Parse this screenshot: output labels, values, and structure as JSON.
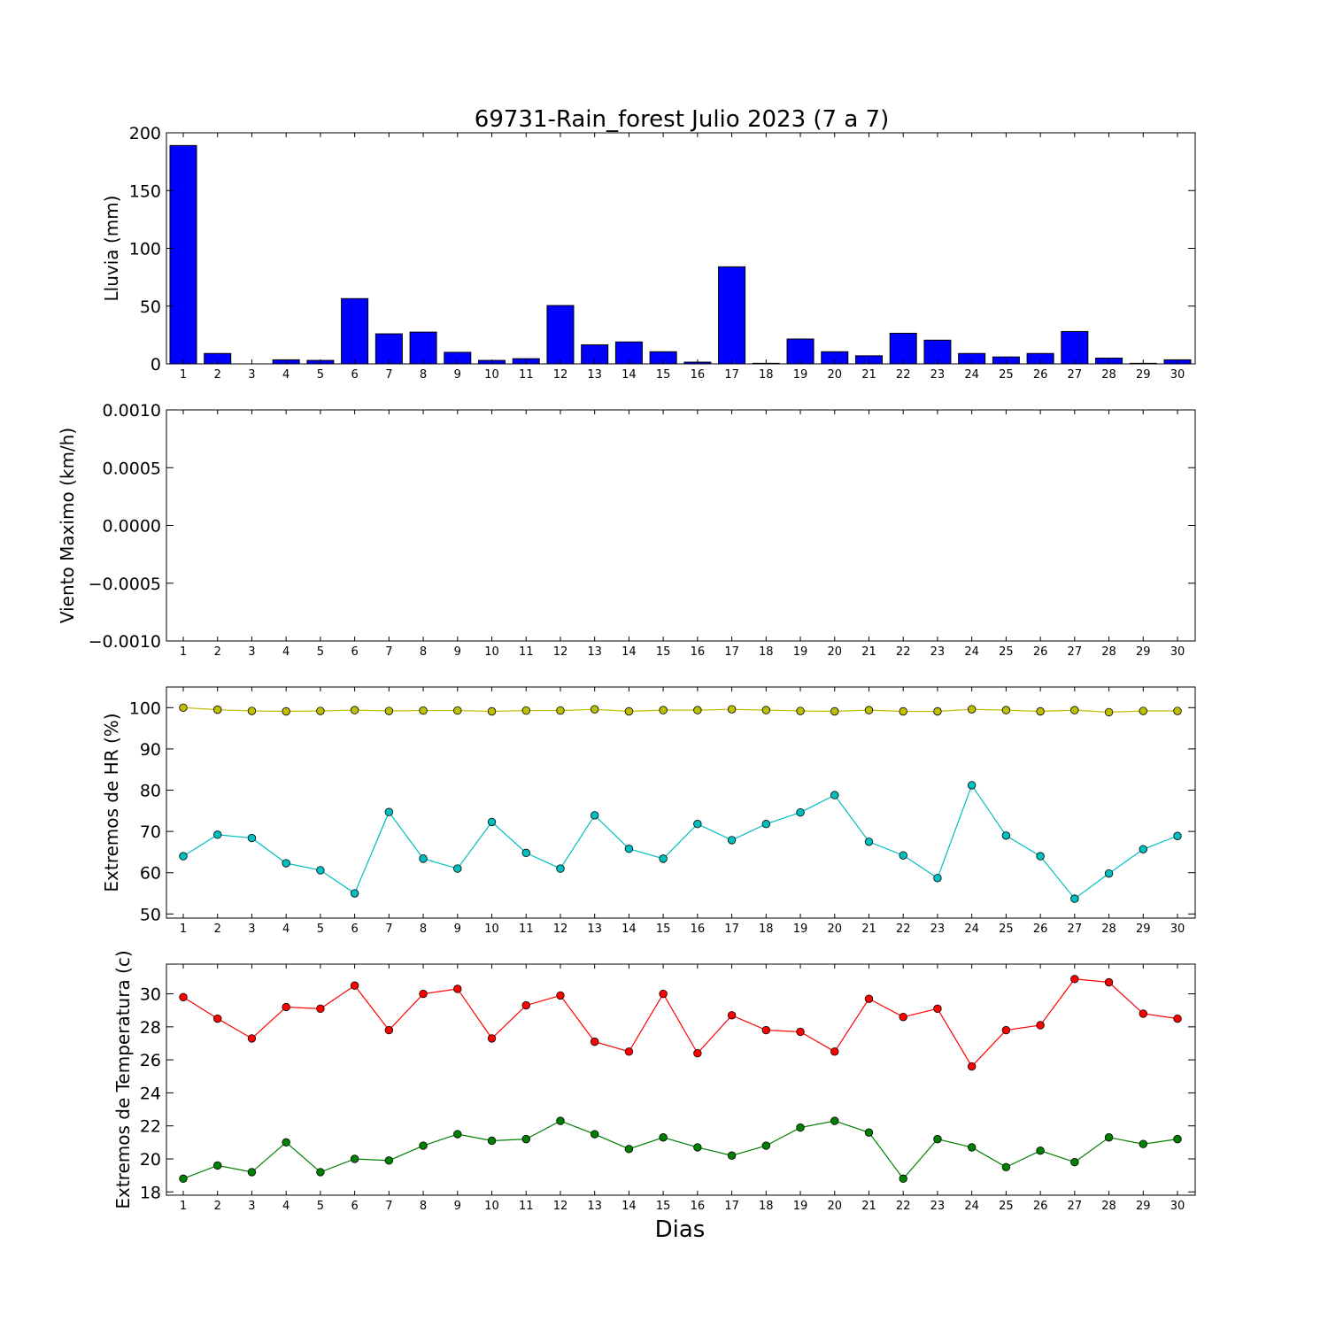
{
  "figure": {
    "title": "69731-Rain_forest Julio 2023  (7 a 7)",
    "xlabel": "Dias"
  },
  "chart_data": [
    {
      "type": "bar",
      "ylabel": "Lluvia (mm)",
      "ylim": [
        0,
        200
      ],
      "yticks": [
        "0",
        "50",
        "100",
        "150",
        "200"
      ],
      "ytick_values": [
        0,
        50,
        100,
        150,
        200
      ],
      "categories": [
        "1",
        "2",
        "3",
        "4",
        "5",
        "6",
        "7",
        "8",
        "9",
        "10",
        "11",
        "12",
        "13",
        "14",
        "15",
        "16",
        "17",
        "18",
        "19",
        "20",
        "21",
        "22",
        "23",
        "24",
        "25",
        "26",
        "27",
        "28",
        "29",
        "30"
      ],
      "series": [
        {
          "color": "#0000ff",
          "values": [
            189,
            9,
            0,
            3.5,
            3,
            56.5,
            26,
            27.5,
            10,
            3,
            4.5,
            50.5,
            16.5,
            19,
            10.5,
            1.5,
            84,
            0.5,
            21.5,
            10.5,
            7,
            26.5,
            20.5,
            9,
            6,
            9,
            28,
            5,
            0.5,
            3.5
          ]
        }
      ]
    },
    {
      "type": "line",
      "ylabel": "Viento Maximo (km/h)",
      "ylim": [
        -0.001,
        0.001
      ],
      "yticks": [
        "0.0010",
        "0.0005",
        "0.0000",
        "−0.0005",
        "−0.0010"
      ],
      "ytick_values": [
        0.001,
        0.0005,
        0,
        -0.0005,
        -0.001
      ],
      "categories": [
        "1",
        "2",
        "3",
        "4",
        "5",
        "6",
        "7",
        "8",
        "9",
        "10",
        "11",
        "12",
        "13",
        "14",
        "15",
        "16",
        "17",
        "18",
        "19",
        "20",
        "21",
        "22",
        "23",
        "24",
        "25",
        "26",
        "27",
        "28",
        "29",
        "30"
      ],
      "series": []
    },
    {
      "type": "line",
      "ylabel": "Extremos de HR (%)",
      "ylim": [
        49,
        105
      ],
      "yticks": [
        "50",
        "60",
        "70",
        "80",
        "90",
        "100"
      ],
      "ytick_values": [
        50,
        60,
        70,
        80,
        90,
        100
      ],
      "categories": [
        "1",
        "2",
        "3",
        "4",
        "5",
        "6",
        "7",
        "8",
        "9",
        "10",
        "11",
        "12",
        "13",
        "14",
        "15",
        "16",
        "17",
        "18",
        "19",
        "20",
        "21",
        "22",
        "23",
        "24",
        "25",
        "26",
        "27",
        "28",
        "29",
        "30"
      ],
      "series": [
        {
          "color": "#bfbf00",
          "values": [
            100,
            99.5,
            99.2,
            99.1,
            99.2,
            99.4,
            99.2,
            99.3,
            99.3,
            99.1,
            99.3,
            99.3,
            99.6,
            99.1,
            99.4,
            99.4,
            99.6,
            99.4,
            99.2,
            99.1,
            99.4,
            99.1,
            99.1,
            99.6,
            99.4,
            99.1,
            99.4,
            98.9,
            99.2,
            99.2
          ]
        },
        {
          "color": "#00bfbf",
          "values": [
            64,
            69.2,
            68.4,
            62.3,
            60.6,
            55,
            74.7,
            63.4,
            61,
            72.3,
            64.8,
            61,
            73.9,
            65.8,
            63.4,
            71.8,
            67.9,
            71.8,
            74.6,
            78.8,
            67.5,
            64.2,
            58.7,
            81.2,
            69,
            64,
            53.7,
            59.8,
            65.7,
            68.9
          ]
        }
      ]
    },
    {
      "type": "line",
      "ylabel": "Extremos de Temperatura (c)",
      "ylim": [
        17.8,
        31.8
      ],
      "yticks": [
        "18",
        "20",
        "22",
        "24",
        "26",
        "28",
        "30"
      ],
      "ytick_values": [
        18,
        20,
        22,
        24,
        26,
        28,
        30
      ],
      "categories": [
        "1",
        "2",
        "3",
        "4",
        "5",
        "6",
        "7",
        "8",
        "9",
        "10",
        "11",
        "12",
        "13",
        "14",
        "15",
        "16",
        "17",
        "18",
        "19",
        "20",
        "21",
        "22",
        "23",
        "24",
        "25",
        "26",
        "27",
        "28",
        "29",
        "30"
      ],
      "series": [
        {
          "color": "#ff0000",
          "values": [
            29.8,
            28.5,
            27.3,
            29.2,
            29.1,
            30.5,
            27.8,
            30,
            30.3,
            27.3,
            29.3,
            29.9,
            27.1,
            26.5,
            30,
            26.4,
            28.7,
            27.8,
            27.7,
            26.5,
            29.7,
            28.6,
            29.1,
            25.6,
            27.8,
            28.1,
            30.9,
            30.7,
            28.8,
            28.5
          ]
        },
        {
          "color": "#008000",
          "values": [
            18.8,
            19.6,
            19.2,
            21,
            19.2,
            20,
            19.9,
            20.8,
            21.5,
            21.1,
            21.2,
            22.3,
            21.5,
            20.6,
            21.3,
            20.7,
            20.2,
            20.8,
            21.9,
            22.3,
            21.6,
            18.8,
            21.2,
            20.7,
            19.5,
            20.5,
            19.8,
            21.3,
            20.9,
            21.2
          ]
        }
      ]
    }
  ]
}
